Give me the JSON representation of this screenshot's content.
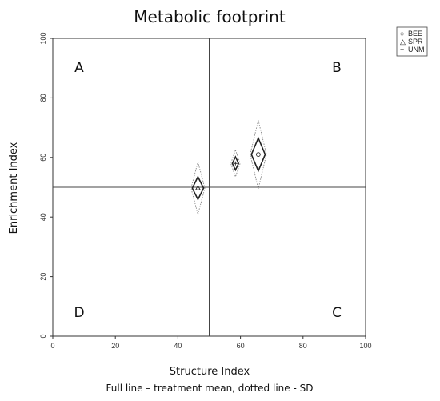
{
  "chart_data": {
    "type": "scatter",
    "title": "Metabolic footprint",
    "xlabel": "Structure Index",
    "ylabel": "Enrichment Index",
    "caption": "Full line – treatment mean, dotted line - SD",
    "xlim": [
      0,
      100
    ],
    "ylim": [
      0,
      100
    ],
    "x_ticks": [
      "0",
      "20",
      "40",
      "60",
      "80",
      "100"
    ],
    "y_ticks": [
      "0",
      "20",
      "40",
      "60",
      "80",
      "100"
    ],
    "reference_lines": {
      "x": 50,
      "y": 50
    },
    "quadrants": {
      "top_left": "A",
      "top_right": "B",
      "bottom_left": "D",
      "bottom_right": "C"
    },
    "legend": {
      "position": "top-right",
      "entries": [
        {
          "name": "BEE",
          "symbol": "○"
        },
        {
          "name": "SPR",
          "symbol": "△"
        },
        {
          "name": "UNM",
          "symbol": "+"
        }
      ]
    },
    "series": [
      {
        "name": "BEE",
        "marker": "circle",
        "x": 65.7,
        "y": 61.0,
        "mean_dx": 2.2,
        "mean_dy": 5.5,
        "sd_dx": 2.6,
        "sd_dy": 11.5
      },
      {
        "name": "SPR",
        "marker": "triangle",
        "x": 46.4,
        "y": 49.7,
        "mean_dx": 1.8,
        "mean_dy": 3.8,
        "sd_dx": 2.2,
        "sd_dy": 8.8
      },
      {
        "name": "UNM",
        "marker": "plus",
        "x": 58.4,
        "y": 58.0,
        "mean_dx": 1.0,
        "mean_dy": 2.2,
        "sd_dx": 1.5,
        "sd_dy": 4.5
      }
    ]
  }
}
